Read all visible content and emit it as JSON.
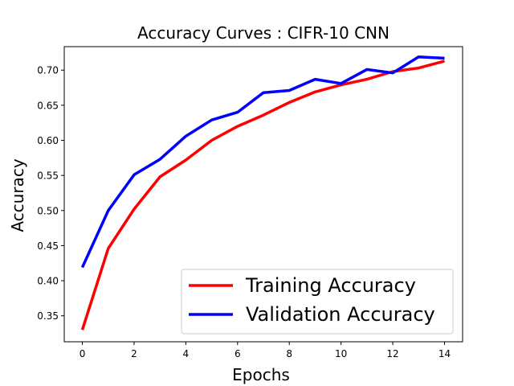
{
  "chart_data": {
    "type": "line",
    "title": "Accuracy Curves : CIFR-10 CNN",
    "xlabel": "Epochs",
    "ylabel": "Accuracy",
    "x": [
      0,
      1,
      2,
      3,
      4,
      5,
      6,
      7,
      8,
      9,
      10,
      11,
      12,
      13,
      14
    ],
    "xlim": [
      -0.7,
      14.7
    ],
    "ylim": [
      0.313,
      0.7335
    ],
    "xticks": [
      0,
      2,
      4,
      6,
      8,
      10,
      12,
      14
    ],
    "yticks": [
      0.35,
      0.4,
      0.45,
      0.5,
      0.55,
      0.6,
      0.65,
      0.7
    ],
    "grid": false,
    "legend_position": "lower-right",
    "series": [
      {
        "name": "Training Accuracy",
        "color": "#ff0000",
        "values": [
          0.33,
          0.446,
          0.502,
          0.548,
          0.572,
          0.6,
          0.62,
          0.636,
          0.654,
          0.669,
          0.679,
          0.687,
          0.698,
          0.703,
          0.713
        ]
      },
      {
        "name": "Validation Accuracy",
        "color": "#0000ff",
        "values": [
          0.419,
          0.5,
          0.551,
          0.573,
          0.606,
          0.629,
          0.64,
          0.668,
          0.671,
          0.687,
          0.681,
          0.701,
          0.696,
          0.719,
          0.717
        ]
      }
    ]
  }
}
